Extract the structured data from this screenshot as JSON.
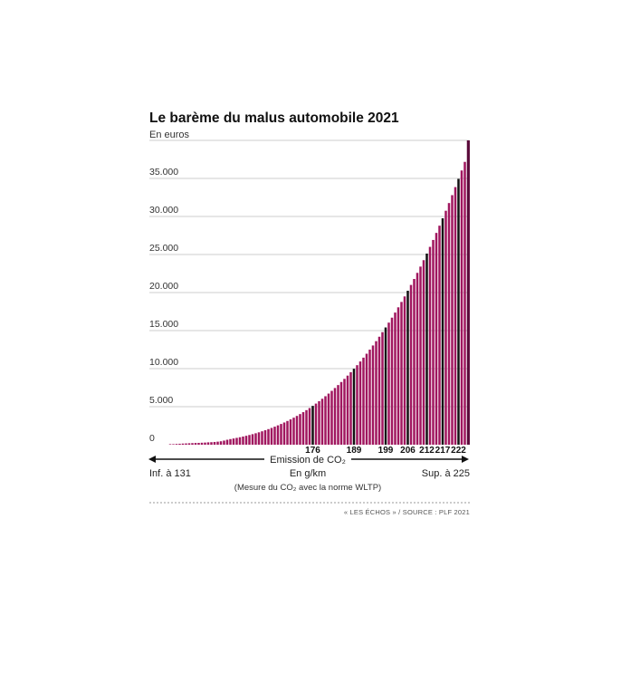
{
  "chart_data": {
    "type": "bar",
    "title": "Le barème du malus automobile 2021",
    "subtitle": "En euros",
    "x_range": [
      131,
      225
    ],
    "ylim": [
      0,
      40000
    ],
    "y_ticks": [
      {
        "value": 0,
        "label": "0"
      },
      {
        "value": 5000,
        "label": "5.000"
      },
      {
        "value": 10000,
        "label": "10.000"
      },
      {
        "value": 15000,
        "label": "15.000"
      },
      {
        "value": 20000,
        "label": "20.000"
      },
      {
        "value": 25000,
        "label": "25.000"
      },
      {
        "value": 30000,
        "label": "30.000"
      },
      {
        "value": 35000,
        "label": "35.000"
      }
    ],
    "highlighted_x": [
      176,
      189,
      199,
      206,
      212,
      217,
      222
    ],
    "highlighted_labels": [
      "176",
      "189",
      "199",
      "206",
      "212",
      "217",
      "222"
    ],
    "x": [
      131,
      132,
      133,
      134,
      135,
      136,
      137,
      138,
      139,
      140,
      141,
      142,
      143,
      144,
      145,
      146,
      147,
      148,
      149,
      150,
      151,
      152,
      153,
      154,
      155,
      156,
      157,
      158,
      159,
      160,
      161,
      162,
      163,
      164,
      165,
      166,
      167,
      168,
      169,
      170,
      171,
      172,
      173,
      174,
      175,
      176,
      177,
      178,
      179,
      180,
      181,
      182,
      183,
      184,
      185,
      186,
      187,
      188,
      189,
      190,
      191,
      192,
      193,
      194,
      195,
      196,
      197,
      198,
      199,
      200,
      201,
      202,
      203,
      204,
      205,
      206,
      207,
      208,
      209,
      210,
      211,
      212,
      213,
      214,
      215,
      216,
      217,
      218,
      219,
      220,
      221,
      222,
      223,
      224,
      225
    ],
    "values": [
      50,
      75,
      100,
      125,
      150,
      170,
      190,
      210,
      230,
      240,
      260,
      280,
      310,
      330,
      360,
      400,
      450,
      540,
      650,
      740,
      818,
      898,
      983,
      1074,
      1172,
      1276,
      1386,
      1504,
      1629,
      1761,
      1901,
      2049,
      2205,
      2370,
      2544,
      2726,
      2918,
      3119,
      3331,
      3552,
      3784,
      4026,
      4279,
      4543,
      4818,
      5105,
      5404,
      5715,
      6037,
      6372,
      6720,
      7080,
      7453,
      7840,
      8240,
      8654,
      9082,
      9524,
      9981,
      10453,
      10940,
      11442,
      11960,
      12494,
      13044,
      13610,
      14193,
      14794,
      15411,
      16046,
      16699,
      17369,
      18058,
      18766,
      19492,
      20237,
      21001,
      21785,
      22589,
      23412,
      24256,
      25121,
      26006,
      26912,
      27840,
      28788,
      29759,
      30751,
      31765,
      32802,
      33861,
      34943,
      36047,
      37175,
      40000
    ],
    "xlabel_center": "Emission de CO₂",
    "xlabel_left": "Inf. à 131",
    "xlabel_right": "Sup. à 225",
    "xlabel_unit": "En g/km",
    "xlabel_note": "(Mesure du CO₂ avec la norme WLTP)",
    "source": "« LES ÉCHOS » / SOURCE : PLF 2021",
    "bar_color": "#a0165f",
    "last_bar_color": "#5a0a3a",
    "marker_color": "#111111",
    "grid": true
  }
}
